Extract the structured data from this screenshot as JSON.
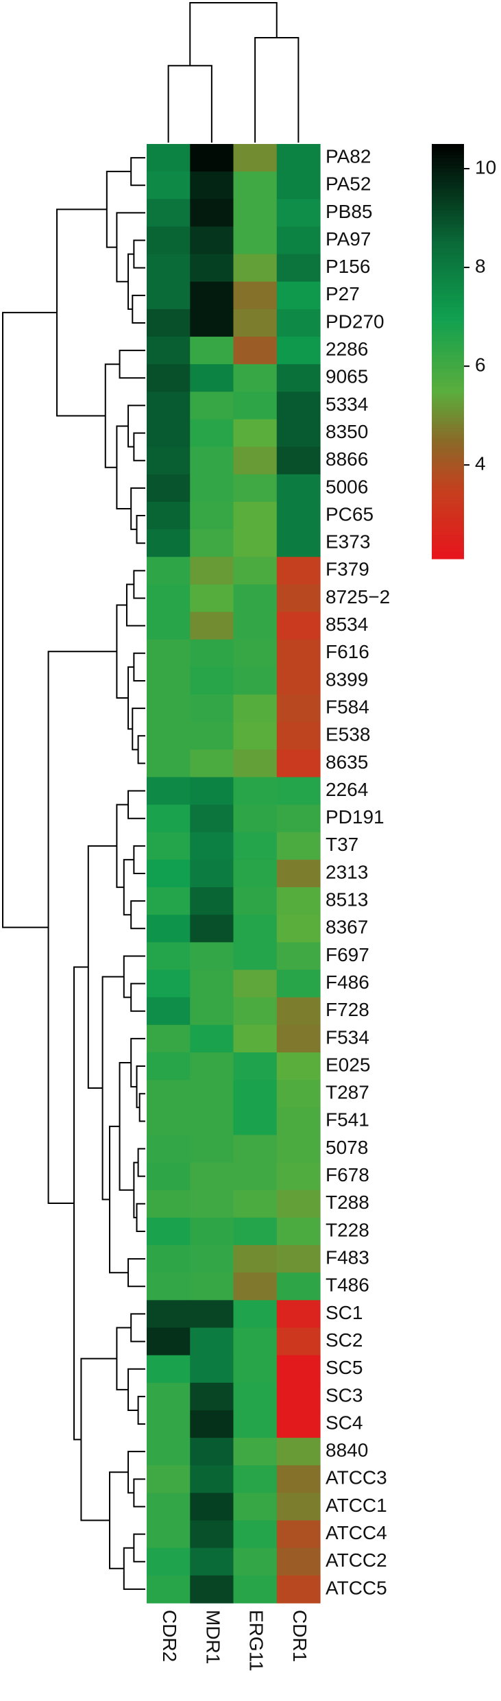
{
  "chart_data": {
    "type": "heatmap",
    "columns": [
      "CDR2",
      "MDR1",
      "ERG11",
      "CDR1"
    ],
    "rows": [
      "PA82",
      "PA52",
      "PB85",
      "PA97",
      "P156",
      "P27",
      "PD270",
      "2286",
      "9065",
      "5334",
      "8350",
      "8866",
      "5006",
      "PC65",
      "E373",
      "F379",
      "8725−2",
      "8534",
      "F616",
      "8399",
      "F584",
      "E538",
      "8635",
      "2264",
      "PD191",
      "T37",
      "2313",
      "8513",
      "8367",
      "F697",
      "F486",
      "F728",
      "F534",
      "E025",
      "T287",
      "F541",
      "5078",
      "F678",
      "T288",
      "T228",
      "F483",
      "T486",
      "SC1",
      "SC2",
      "SC5",
      "SC3",
      "SC4",
      "8840",
      "ATCC3",
      "ATCC1",
      "ATCC4",
      "ATCC2",
      "ATCC5"
    ],
    "values": [
      [
        7.8,
        10.3,
        5,
        7.8
      ],
      [
        7.6,
        9.8,
        6,
        7.8
      ],
      [
        8.2,
        10,
        6,
        7.5
      ],
      [
        8.6,
        9.5,
        6,
        7.8
      ],
      [
        8.5,
        9.3,
        5.3,
        8.2
      ],
      [
        8.5,
        10,
        4.6,
        7.2
      ],
      [
        9,
        10,
        4.8,
        7.6
      ],
      [
        8.7,
        6.2,
        4.2,
        7.2
      ],
      [
        9,
        7.8,
        6.2,
        8.3
      ],
      [
        8.8,
        6.2,
        6.4,
        8.8
      ],
      [
        8.8,
        6.5,
        5.5,
        8.8
      ],
      [
        8.7,
        6.3,
        5.2,
        9
      ],
      [
        8.9,
        6.3,
        6,
        8
      ],
      [
        8.6,
        6.2,
        5.5,
        8
      ],
      [
        8.3,
        6,
        5.5,
        8
      ],
      [
        6.4,
        5.2,
        5.8,
        3.5
      ],
      [
        6.5,
        5.6,
        6.3,
        3.7
      ],
      [
        6.5,
        5,
        6.3,
        3.3
      ],
      [
        6.2,
        6.4,
        6.2,
        3.6
      ],
      [
        6.2,
        6.5,
        6.3,
        3.6
      ],
      [
        6.2,
        6.3,
        5.6,
        3.7
      ],
      [
        6.2,
        6.2,
        5.5,
        3.6
      ],
      [
        6.2,
        5.8,
        5.3,
        3.3
      ],
      [
        7.6,
        7.8,
        6.5,
        6.6
      ],
      [
        6.8,
        8.2,
        6.4,
        6.2
      ],
      [
        6.6,
        7.9,
        6.6,
        5.8
      ],
      [
        7,
        8,
        6.5,
        4.8
      ],
      [
        6.6,
        8.6,
        6.4,
        5.6
      ],
      [
        7.3,
        9,
        6.6,
        5.5
      ],
      [
        6.6,
        6.3,
        6.6,
        6
      ],
      [
        6.9,
        6.2,
        5.4,
        6.5
      ],
      [
        7.5,
        6.2,
        5.8,
        4.8
      ],
      [
        6.2,
        6.8,
        5.5,
        4.7
      ],
      [
        6.5,
        6.2,
        6.7,
        5.5
      ],
      [
        6.2,
        6.2,
        6.8,
        5.7
      ],
      [
        6.2,
        6.2,
        6.8,
        5.8
      ],
      [
        6.3,
        6.2,
        6,
        5.8
      ],
      [
        6.4,
        6,
        6,
        5.7
      ],
      [
        6.1,
        6,
        5.8,
        5.3
      ],
      [
        6.8,
        6.4,
        6.6,
        5.8
      ],
      [
        6.4,
        6.3,
        5,
        5.1
      ],
      [
        6.3,
        6.2,
        4.7,
        6.4
      ],
      [
        9.2,
        9.2,
        6.7,
        2.6
      ],
      [
        9.6,
        8,
        6.5,
        3.2
      ],
      [
        6.8,
        8,
        6.5,
        2.3
      ],
      [
        6.3,
        9.2,
        6.6,
        2.3
      ],
      [
        6.3,
        9.6,
        6.6,
        2.3
      ],
      [
        6.3,
        8.8,
        6,
        5.2
      ],
      [
        6,
        8.6,
        6.5,
        4.6
      ],
      [
        6.3,
        9.3,
        6.2,
        4.8
      ],
      [
        6.3,
        9,
        6.6,
        3.9
      ],
      [
        6.7,
        8.5,
        6.3,
        4.2
      ],
      [
        6.5,
        9.2,
        6.5,
        3.7
      ]
    ],
    "zlim": [
      2.1,
      10.5
    ],
    "zticks": [
      4,
      6,
      8,
      10
    ],
    "colorscale": [
      {
        "value": 2.1,
        "color": "#e8141c"
      },
      {
        "value": 3.5,
        "color": "#c4401e"
      },
      {
        "value": 4.5,
        "color": "#8a6a28"
      },
      {
        "value": 5.5,
        "color": "#5aae3c"
      },
      {
        "value": 7,
        "color": "#10a050"
      },
      {
        "value": 8.5,
        "color": "#0a6a38"
      },
      {
        "value": 10.5,
        "color": "#000000"
      }
    ]
  }
}
